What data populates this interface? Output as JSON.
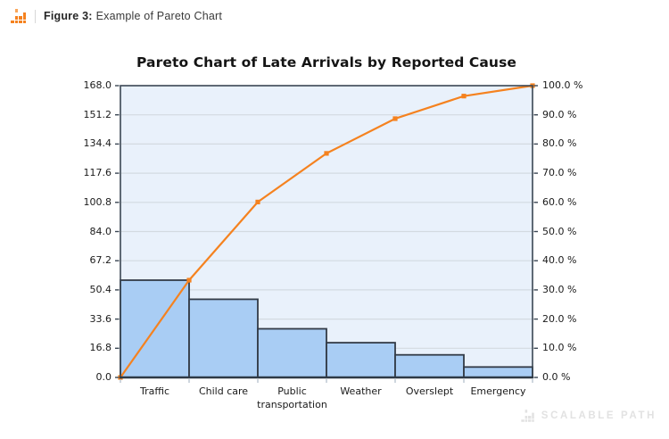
{
  "header": {
    "figure_label": "Figure 3:",
    "figure_text": "Example of Pareto Chart"
  },
  "watermark": {
    "text": "SCALABLE PATH"
  },
  "chart_data": {
    "type": "bar",
    "subtype": "pareto (bars + cumulative % line)",
    "title": "Pareto Chart of Late Arrivals by Reported Cause",
    "categories": [
      "Traffic",
      "Child care",
      "Public transportation",
      "Weather",
      "Overslept",
      "Emergency"
    ],
    "values": [
      56,
      45,
      28,
      20,
      13,
      6
    ],
    "total": 168,
    "cumulative_counts": [
      56,
      101,
      129,
      149,
      162,
      168
    ],
    "cumulative_percent": [
      33.3,
      60.1,
      76.8,
      88.7,
      96.4,
      100.0
    ],
    "line_starts_at_origin": true,
    "left_axis": {
      "min": 0,
      "max": 168,
      "tick_labels": [
        "0.0",
        "16.8",
        "33.6",
        "50.4",
        "67.2",
        "84.0",
        "100.8",
        "117.6",
        "134.4",
        "151.2",
        "168.0"
      ]
    },
    "right_axis": {
      "min": 0,
      "max": 100,
      "tick_labels": [
        "0.0 %",
        "10.0 %",
        "20.0 %",
        "30.0 %",
        "40.0 %",
        "50.0 %",
        "60.0 %",
        "70.0 %",
        "80.0 %",
        "90.0 %",
        "100.0 %"
      ]
    },
    "grid": "horizontal",
    "legend": "none",
    "colors": {
      "bar_fill": "#a9cdf4",
      "bar_edge": "#333b47",
      "line": "#f5821f",
      "marker": "#f5821f",
      "plot_background": "#e9f1fb",
      "gridline": "#d3dae1",
      "axis_frame": "#3a4653",
      "tick_text": "#1a1a1a",
      "brand_orange": "#f5821f",
      "brand_orange_light": "#f9a65a",
      "watermark_gray": "#e2e2e2"
    }
  }
}
